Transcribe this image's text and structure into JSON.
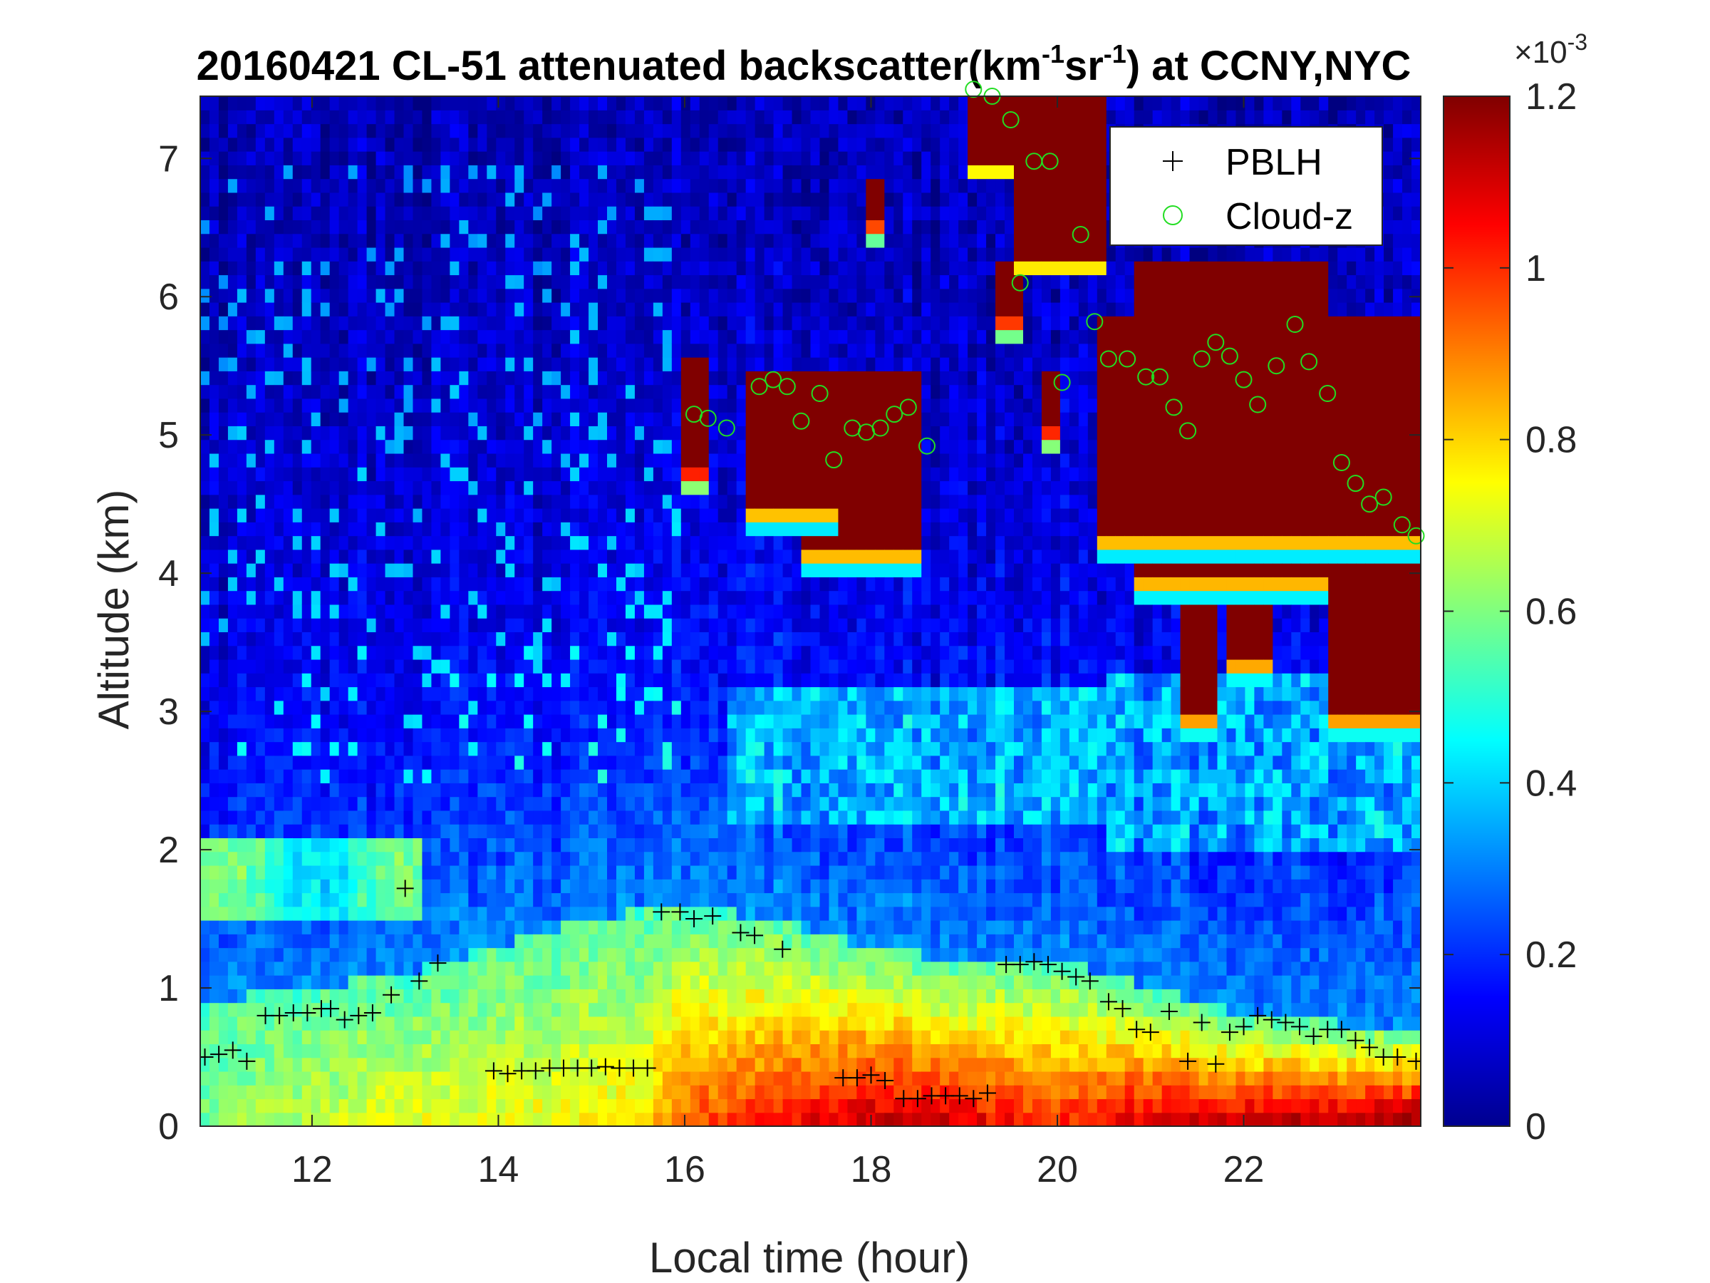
{
  "chart_data": {
    "type": "heatmap",
    "title": {
      "prefix": "20160421  CL-51 attenuated backscatter(km",
      "sup1": "-1",
      "mid": "sr",
      "sup2": "-1",
      "suffix": ") at CCNY,NYC"
    },
    "xlabel": "Local time (hour)",
    "ylabel": "Altitude (km)",
    "xlim": [
      10.8,
      23.9
    ],
    "ylim": [
      0,
      7.45
    ],
    "x_ticks": [
      "12",
      "14",
      "16",
      "18",
      "20",
      "22"
    ],
    "y_ticks": [
      "0",
      "1",
      "2",
      "3",
      "4",
      "5",
      "6",
      "7"
    ],
    "colorbar": {
      "colormap": "jet",
      "range": [
        0,
        0.0012
      ],
      "ticks": [
        "0",
        "0.2",
        "0.4",
        "0.6",
        "0.8",
        "1",
        "1.2"
      ],
      "exponent_label": "×10",
      "exponent_sup": "-3"
    },
    "legend": {
      "position": "top-right",
      "entries": [
        {
          "label": "PBLH",
          "marker": "+",
          "color": "#000000"
        },
        {
          "label": "Cloud-z",
          "marker": "o",
          "color": "#22dd22"
        }
      ]
    },
    "series": [
      {
        "name": "PBLH",
        "marker": "+",
        "points": [
          [
            10.85,
            0.5
          ],
          [
            11.0,
            0.52
          ],
          [
            11.15,
            0.55
          ],
          [
            11.3,
            0.47
          ],
          [
            11.5,
            0.8
          ],
          [
            11.65,
            0.8
          ],
          [
            11.8,
            0.82
          ],
          [
            11.95,
            0.82
          ],
          [
            12.1,
            0.85
          ],
          [
            12.2,
            0.85
          ],
          [
            12.35,
            0.77
          ],
          [
            12.5,
            0.8
          ],
          [
            12.65,
            0.82
          ],
          [
            12.85,
            0.95
          ],
          [
            13.0,
            1.72
          ],
          [
            13.15,
            1.05
          ],
          [
            13.35,
            1.18
          ],
          [
            13.95,
            0.4
          ],
          [
            14.1,
            0.38
          ],
          [
            14.25,
            0.4
          ],
          [
            14.4,
            0.4
          ],
          [
            14.55,
            0.42
          ],
          [
            14.7,
            0.42
          ],
          [
            14.85,
            0.42
          ],
          [
            15.0,
            0.42
          ],
          [
            15.15,
            0.43
          ],
          [
            15.3,
            0.42
          ],
          [
            15.45,
            0.42
          ],
          [
            15.6,
            0.42
          ],
          [
            15.75,
            1.55
          ],
          [
            15.95,
            1.55
          ],
          [
            16.1,
            1.5
          ],
          [
            16.3,
            1.52
          ],
          [
            16.6,
            1.4
          ],
          [
            16.75,
            1.38
          ],
          [
            17.05,
            1.28
          ],
          [
            17.7,
            0.35
          ],
          [
            17.85,
            0.35
          ],
          [
            18.0,
            0.37
          ],
          [
            18.15,
            0.33
          ],
          [
            18.35,
            0.2
          ],
          [
            18.5,
            0.2
          ],
          [
            18.65,
            0.22
          ],
          [
            18.8,
            0.22
          ],
          [
            18.95,
            0.22
          ],
          [
            19.1,
            0.2
          ],
          [
            19.25,
            0.24
          ],
          [
            19.45,
            1.17
          ],
          [
            19.6,
            1.17
          ],
          [
            19.75,
            1.19
          ],
          [
            19.9,
            1.17
          ],
          [
            20.05,
            1.12
          ],
          [
            20.2,
            1.08
          ],
          [
            20.35,
            1.05
          ],
          [
            20.55,
            0.9
          ],
          [
            20.7,
            0.85
          ],
          [
            20.85,
            0.7
          ],
          [
            21.0,
            0.68
          ],
          [
            21.2,
            0.83
          ],
          [
            21.4,
            0.47
          ],
          [
            21.55,
            0.75
          ],
          [
            21.7,
            0.45
          ],
          [
            21.85,
            0.68
          ],
          [
            22.0,
            0.72
          ],
          [
            22.15,
            0.8
          ],
          [
            22.3,
            0.77
          ],
          [
            22.45,
            0.75
          ],
          [
            22.6,
            0.72
          ],
          [
            22.75,
            0.65
          ],
          [
            22.9,
            0.7
          ],
          [
            23.05,
            0.7
          ],
          [
            23.2,
            0.62
          ],
          [
            23.35,
            0.57
          ],
          [
            23.5,
            0.5
          ],
          [
            23.65,
            0.5
          ],
          [
            23.85,
            0.47
          ]
        ]
      },
      {
        "name": "Cloud-z",
        "marker": "o",
        "points": [
          [
            16.1,
            5.15
          ],
          [
            16.25,
            5.12
          ],
          [
            16.45,
            5.05
          ],
          [
            16.8,
            5.35
          ],
          [
            16.95,
            5.4
          ],
          [
            17.1,
            5.35
          ],
          [
            17.25,
            5.1
          ],
          [
            17.45,
            5.3
          ],
          [
            17.6,
            4.82
          ],
          [
            17.8,
            5.05
          ],
          [
            17.95,
            5.02
          ],
          [
            18.1,
            5.05
          ],
          [
            18.25,
            5.15
          ],
          [
            18.4,
            5.2
          ],
          [
            18.6,
            4.92
          ],
          [
            19.1,
            7.5
          ],
          [
            19.3,
            7.45
          ],
          [
            19.5,
            7.28
          ],
          [
            19.75,
            6.98
          ],
          [
            19.92,
            6.98
          ],
          [
            19.6,
            6.1
          ],
          [
            20.05,
            5.38
          ],
          [
            20.25,
            6.45
          ],
          [
            20.4,
            5.82
          ],
          [
            20.55,
            5.55
          ],
          [
            20.75,
            5.55
          ],
          [
            20.95,
            5.42
          ],
          [
            21.1,
            5.42
          ],
          [
            21.25,
            5.2
          ],
          [
            21.4,
            5.03
          ],
          [
            21.55,
            5.55
          ],
          [
            21.7,
            5.67
          ],
          [
            21.85,
            5.57
          ],
          [
            22.0,
            5.4
          ],
          [
            22.15,
            5.22
          ],
          [
            22.35,
            5.5
          ],
          [
            22.55,
            5.8
          ],
          [
            22.7,
            5.53
          ],
          [
            22.9,
            5.3
          ],
          [
            23.05,
            4.8
          ],
          [
            23.2,
            4.65
          ],
          [
            23.35,
            4.5
          ],
          [
            23.5,
            4.55
          ],
          [
            23.7,
            4.35
          ],
          [
            23.85,
            4.27
          ]
        ]
      }
    ]
  }
}
